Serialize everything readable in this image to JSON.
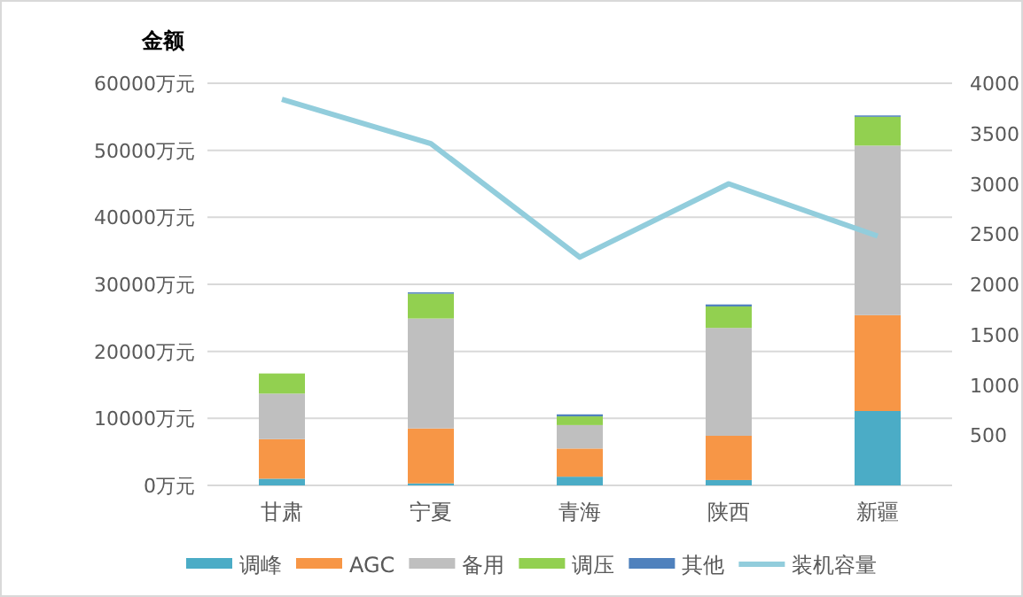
{
  "chart_data": {
    "type": "bar",
    "stacked": true,
    "ylabel": "金额",
    "categories": [
      "甘肃",
      "宁夏",
      "青海",
      "陕西",
      "新疆"
    ],
    "series": [
      {
        "name": "调峰",
        "color": "#4bacc6",
        "values": [
          1000,
          300,
          1300,
          800,
          11100
        ]
      },
      {
        "name": "AGC",
        "color": "#f79646",
        "values": [
          5900,
          8200,
          4200,
          6600,
          14300
        ]
      },
      {
        "name": "备用",
        "color": "#bfbfbf",
        "values": [
          6800,
          16400,
          3500,
          16100,
          25300
        ]
      },
      {
        "name": "调压",
        "color": "#92d050",
        "values": [
          3000,
          3700,
          1300,
          3200,
          4300
        ]
      },
      {
        "name": "其他",
        "color": "#4f81bd",
        "values": [
          0,
          200,
          300,
          300,
          200
        ]
      },
      {
        "name": "装机容量",
        "type": "line",
        "axis": "y2",
        "color": "#92cddc",
        "values": [
          3840,
          3400,
          2270,
          3000,
          2480
        ]
      }
    ],
    "ylim": [
      0,
      60000
    ],
    "yticks": [
      {
        "value": 0,
        "label": "0万元"
      },
      {
        "value": 10000,
        "label": "10000万元"
      },
      {
        "value": 20000,
        "label": "20000万元"
      },
      {
        "value": 30000,
        "label": "30000万元"
      },
      {
        "value": 40000,
        "label": "40000万元"
      },
      {
        "value": 50000,
        "label": "50000万元"
      },
      {
        "value": 60000,
        "label": "60000万元"
      }
    ],
    "y2lim": [
      0,
      4000
    ],
    "y2ticks": [
      500,
      1000,
      1500,
      2000,
      2500,
      3000,
      3500,
      4000
    ],
    "grid": "y",
    "legend": "bottom",
    "marker": "none"
  }
}
